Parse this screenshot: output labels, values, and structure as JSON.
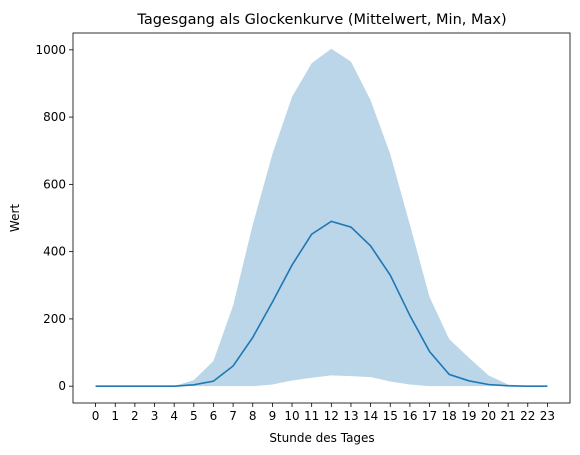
{
  "chart_data": {
    "type": "area",
    "title": "Tagesgang als Glockenkurve (Mittelwert, Min, Max)",
    "xlabel": "Stunde des Tages",
    "ylabel": "Wert",
    "x": [
      0,
      1,
      2,
      3,
      4,
      5,
      6,
      7,
      8,
      9,
      10,
      11,
      12,
      13,
      14,
      15,
      16,
      17,
      18,
      19,
      20,
      21,
      22,
      23
    ],
    "xticks": [
      "0",
      "1",
      "2",
      "3",
      "4",
      "5",
      "6",
      "7",
      "8",
      "9",
      "10",
      "11",
      "12",
      "13",
      "14",
      "15",
      "16",
      "17",
      "18",
      "19",
      "20",
      "21",
      "22",
      "23"
    ],
    "yticks": [
      0,
      200,
      400,
      600,
      800,
      1000
    ],
    "ytick_labels": [
      "0",
      "200",
      "400",
      "600",
      "800",
      "1000"
    ],
    "xlim": [
      -1.15,
      24.15
    ],
    "ylim": [
      -50,
      1050
    ],
    "grid": false,
    "series": [
      {
        "kind": "line",
        "color": "#1f77b4",
        "values": [
          0,
          0,
          0,
          0,
          0,
          4,
          15,
          60,
          145,
          250,
          360,
          452,
          490,
          473,
          417,
          330,
          210,
          103,
          35,
          16,
          5,
          1,
          0,
          0
        ]
      },
      {
        "kind": "band",
        "color": "#1f77b4",
        "opacity": 0.3,
        "lower": [
          0,
          0,
          0,
          0,
          0,
          0,
          0,
          0,
          0,
          5,
          17,
          25,
          32,
          30,
          27,
          14,
          5,
          0,
          0,
          0,
          0,
          0,
          0,
          0
        ],
        "upper": [
          0,
          0,
          0,
          0,
          0,
          18,
          75,
          240,
          480,
          690,
          860,
          960,
          1003,
          965,
          850,
          690,
          480,
          265,
          140,
          85,
          32,
          5,
          0,
          0
        ]
      }
    ]
  }
}
